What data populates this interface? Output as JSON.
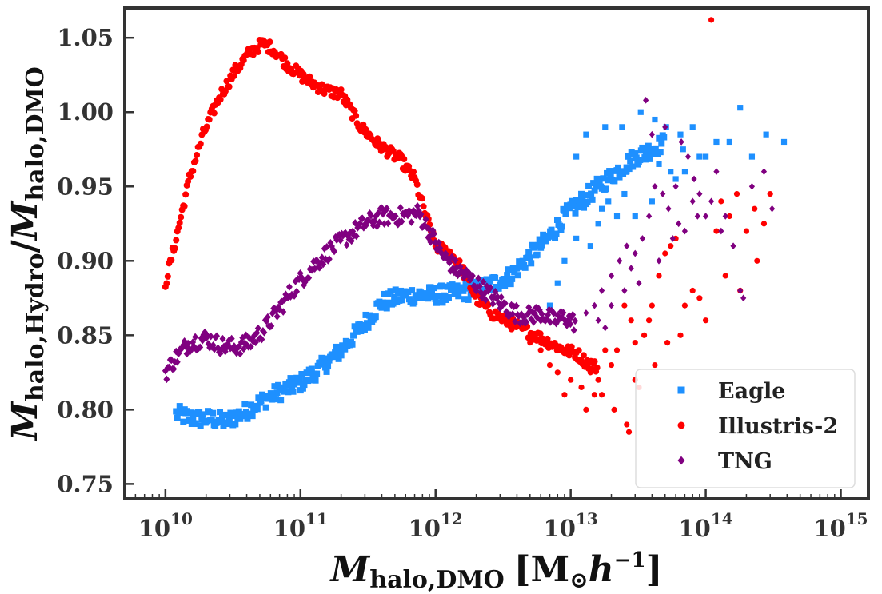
{
  "chart_data": {
    "type": "scatter",
    "title": "",
    "xlabel": {
      "main": "M",
      "sub": "halo,DMO",
      "unit": "[M",
      "unit_sub": "⊙",
      "unit_rest": "h",
      "unit_sup": "−1",
      "close": "]"
    },
    "ylabel": {
      "main": "M",
      "sub1": "halo,Hydro",
      "slash": "/",
      "main2": "M",
      "sub2": "halo,DMO"
    },
    "x_scale": "log",
    "xlim": [
      5000000000.0,
      1600000000000000.0
    ],
    "ylim": [
      0.74,
      1.07
    ],
    "x_ticks": [
      {
        "value": 10000000000.0,
        "base": "10",
        "exp": "10"
      },
      {
        "value": 100000000000.0,
        "base": "10",
        "exp": "11"
      },
      {
        "value": 1000000000000.0,
        "base": "10",
        "exp": "12"
      },
      {
        "value": 10000000000000.0,
        "base": "10",
        "exp": "13"
      },
      {
        "value": 100000000000000.0,
        "base": "10",
        "exp": "14"
      },
      {
        "value": 1000000000000000.0,
        "base": "10",
        "exp": "15"
      }
    ],
    "y_ticks": [
      "0.75",
      "0.80",
      "0.85",
      "0.90",
      "0.95",
      "1.00",
      "1.05"
    ],
    "grid": false,
    "legend_position": "bottom-right",
    "series": [
      {
        "name": "Eagle",
        "color": "#1e90ff",
        "marker": "square",
        "curve": [
          [
            12000000000.0,
            0.797
          ],
          [
            16000000000.0,
            0.794
          ],
          [
            22000000000.0,
            0.794
          ],
          [
            28000000000.0,
            0.792
          ],
          [
            38000000000.0,
            0.798
          ],
          [
            50000000000.0,
            0.805
          ],
          [
            70000000000.0,
            0.812
          ],
          [
            100000000000.0,
            0.818
          ],
          [
            150000000000.0,
            0.83
          ],
          [
            200000000000.0,
            0.84
          ],
          [
            280000000000.0,
            0.855
          ],
          [
            400000000000.0,
            0.872
          ],
          [
            600000000000.0,
            0.877
          ],
          [
            900000000000.0,
            0.877
          ],
          [
            1300000000000.0,
            0.878
          ],
          [
            1900000000000.0,
            0.88
          ],
          [
            2700000000000.0,
            0.885
          ],
          [
            3600000000000.0,
            0.89
          ],
          [
            4600000000000.0,
            0.9
          ],
          [
            6000000000000.0,
            0.91
          ],
          [
            7500000000000.0,
            0.92
          ],
          [
            9000000000000.0,
            0.93
          ],
          [
            12000000000000.0,
            0.94
          ],
          [
            16000000000000.0,
            0.95
          ],
          [
            22000000000000.0,
            0.96
          ],
          [
            30000000000000.0,
            0.97
          ],
          [
            40000000000000.0,
            0.975
          ],
          [
            50000000000000.0,
            0.98
          ]
        ],
        "curve_spread": 0.006,
        "points": [
          [
            11000000000000.0,
            0.97
          ],
          [
            13000000000000.0,
            0.985
          ],
          [
            18000000000000.0,
            0.99
          ],
          [
            24000000000000.0,
            0.99
          ],
          [
            33000000000000.0,
            1.0
          ],
          [
            42000000000000.0,
            0.995
          ],
          [
            51000000000000.0,
            0.99
          ],
          [
            65000000000000.0,
            0.985
          ],
          [
            80000000000000.0,
            0.99
          ],
          [
            100000000000000.0,
            0.97
          ],
          [
            120000000000000.0,
            0.98
          ],
          [
            150000000000000.0,
            0.98
          ],
          [
            180000000000000.0,
            1.003
          ],
          [
            220000000000000.0,
            0.97
          ],
          [
            280000000000000.0,
            0.985
          ],
          [
            380000000000000.0,
            0.98
          ],
          [
            55000000000000.0,
            0.96
          ],
          [
            60000000000000.0,
            0.955
          ],
          [
            70000000000000.0,
            0.96
          ],
          [
            90000000000000.0,
            0.97
          ],
          [
            16000000000000.0,
            0.925
          ],
          [
            14000000000000.0,
            0.91
          ],
          [
            19000000000000.0,
            0.94
          ],
          [
            25000000000000.0,
            0.945
          ],
          [
            30000000000000.0,
            0.93
          ],
          [
            40000000000000.0,
            0.94
          ],
          [
            22000000000000.0,
            0.93
          ],
          [
            8000000000000.0,
            0.885
          ],
          [
            7000000000000.0,
            0.87
          ],
          [
            9000000000000.0,
            0.9
          ],
          [
            11000000000000.0,
            0.915
          ],
          [
            17000000000000.0,
            0.935
          ],
          [
            26000000000000.0,
            0.96
          ],
          [
            36000000000000.0,
            0.968
          ],
          [
            45000000000000.0,
            0.965
          ],
          [
            68000000000000.0,
            0.975
          ]
        ]
      },
      {
        "name": "Illustris-2",
        "color": "#ff0000",
        "marker": "circle",
        "curve": [
          [
            10000000000.0,
            0.885
          ],
          [
            12000000000.0,
            0.915
          ],
          [
            15000000000.0,
            0.955
          ],
          [
            19000000000.0,
            0.985
          ],
          [
            25000000000.0,
            1.01
          ],
          [
            33000000000.0,
            1.028
          ],
          [
            42000000000.0,
            1.04
          ],
          [
            52000000000.0,
            1.046
          ],
          [
            62000000000.0,
            1.043
          ],
          [
            80000000000.0,
            1.032
          ],
          [
            110000000000.0,
            1.022
          ],
          [
            150000000000.0,
            1.015
          ],
          [
            200000000000.0,
            1.012
          ],
          [
            280000000000.0,
            0.99
          ],
          [
            380000000000.0,
            0.978
          ],
          [
            550000000000.0,
            0.968
          ],
          [
            700000000000.0,
            0.955
          ],
          [
            850000000000.0,
            0.93
          ],
          [
            1000000000000.0,
            0.91
          ],
          [
            1300000000000.0,
            0.905
          ],
          [
            1600000000000.0,
            0.893
          ],
          [
            2000000000000.0,
            0.875
          ],
          [
            2600000000000.0,
            0.865
          ],
          [
            3300000000000.0,
            0.86
          ],
          [
            4200000000000.0,
            0.855
          ],
          [
            5500000000000.0,
            0.85
          ],
          [
            7000000000000.0,
            0.845
          ],
          [
            9000000000000.0,
            0.84
          ],
          [
            11000000000000.0,
            0.838
          ],
          [
            13000000000000.0,
            0.832
          ],
          [
            16000000000000.0,
            0.828
          ]
        ],
        "curve_spread": 0.004,
        "points": [
          [
            110000000000000.0,
            1.062
          ],
          [
            130000000000000.0,
            0.94
          ],
          [
            150000000000000.0,
            0.93
          ],
          [
            170000000000000.0,
            0.945
          ],
          [
            200000000000000.0,
            0.92
          ],
          [
            230000000000000.0,
            0.935
          ],
          [
            270000000000000.0,
            0.925
          ],
          [
            300000000000000.0,
            0.945
          ],
          [
            120000000000000.0,
            0.92
          ],
          [
            90000000000000.0,
            0.875
          ],
          [
            80000000000000.0,
            0.88
          ],
          [
            70000000000000.0,
            0.87
          ],
          [
            60000000000000.0,
            0.915
          ],
          [
            55000000000000.0,
            0.91
          ],
          [
            50000000000000.0,
            0.905
          ],
          [
            45000000000000.0,
            0.89
          ],
          [
            40000000000000.0,
            0.87
          ],
          [
            38000000000000.0,
            0.86
          ],
          [
            35000000000000.0,
            0.85
          ],
          [
            30000000000000.0,
            0.845
          ],
          [
            28000000000000.0,
            0.86
          ],
          [
            25000000000000.0,
            0.87
          ],
          [
            22000000000000.0,
            0.84
          ],
          [
            20000000000000.0,
            0.83
          ],
          [
            18000000000000.0,
            0.84
          ],
          [
            16000000000000.0,
            0.82
          ],
          [
            15000000000000.0,
            0.81
          ],
          [
            14000000000000.0,
            0.825
          ],
          [
            12000000000000.0,
            0.815
          ],
          [
            10000000000000.0,
            0.82
          ],
          [
            8000000000000.0,
            0.825
          ],
          [
            7000000000000.0,
            0.83
          ],
          [
            6000000000000.0,
            0.84
          ],
          [
            5000000000000.0,
            0.845
          ],
          [
            30000000000000.0,
            0.82
          ],
          [
            26000000000000.0,
            0.79
          ],
          [
            27000000000000.0,
            0.785
          ],
          [
            32000000000000.0,
            0.815
          ],
          [
            42000000000000.0,
            0.83
          ],
          [
            52000000000000.0,
            0.845
          ],
          [
            65000000000000.0,
            0.85
          ],
          [
            240000000000000.0,
            0.9
          ],
          [
            180000000000000.0,
            0.88
          ],
          [
            140000000000000.0,
            0.89
          ],
          [
            100000000000000.0,
            0.86
          ],
          [
            17000000000000.0,
            0.81
          ],
          [
            21000000000000.0,
            0.8
          ],
          [
            13000000000000.0,
            0.8
          ],
          [
            9000000000000.0,
            0.81
          ]
        ]
      },
      {
        "name": "TNG",
        "color": "#800080",
        "marker": "diamond",
        "curve": [
          [
            10000000000.0,
            0.825
          ],
          [
            12000000000.0,
            0.835
          ],
          [
            15000000000.0,
            0.845
          ],
          [
            20000000000.0,
            0.848
          ],
          [
            26000000000.0,
            0.843
          ],
          [
            33000000000.0,
            0.842
          ],
          [
            42000000000.0,
            0.845
          ],
          [
            55000000000.0,
            0.855
          ],
          [
            70000000000.0,
            0.868
          ],
          [
            90000000000.0,
            0.882
          ],
          [
            120000000000.0,
            0.895
          ],
          [
            160000000000.0,
            0.906
          ],
          [
            220000000000.0,
            0.916
          ],
          [
            300000000000.0,
            0.925
          ],
          [
            400000000000.0,
            0.93
          ],
          [
            550000000000.0,
            0.93
          ],
          [
            750000000000.0,
            0.932
          ],
          [
            900000000000.0,
            0.92
          ],
          [
            1100000000000.0,
            0.905
          ],
          [
            1400000000000.0,
            0.895
          ],
          [
            1800000000000.0,
            0.888
          ],
          [
            2300000000000.0,
            0.88
          ],
          [
            3000000000000.0,
            0.872
          ],
          [
            3800000000000.0,
            0.865
          ],
          [
            4800000000000.0,
            0.863
          ],
          [
            6000000000000.0,
            0.865
          ],
          [
            7500000000000.0,
            0.86
          ],
          [
            9000000000000.0,
            0.862
          ],
          [
            11000000000000.0,
            0.858
          ]
        ],
        "curve_spread": 0.006,
        "points": [
          [
            13000000000000.0,
            0.865
          ],
          [
            15000000000000.0,
            0.87
          ],
          [
            17000000000000.0,
            0.88
          ],
          [
            20000000000000.0,
            0.89
          ],
          [
            23000000000000.0,
            0.9
          ],
          [
            26000000000000.0,
            0.91
          ],
          [
            30000000000000.0,
            0.905
          ],
          [
            34000000000000.0,
            0.915
          ],
          [
            38000000000000.0,
            0.93
          ],
          [
            42000000000000.0,
            0.95
          ],
          [
            48000000000000.0,
            0.945
          ],
          [
            53000000000000.0,
            0.935
          ],
          [
            60000000000000.0,
            0.95
          ],
          [
            66000000000000.0,
            0.98
          ],
          [
            74000000000000.0,
            0.97
          ],
          [
            82000000000000.0,
            0.955
          ],
          [
            90000000000000.0,
            0.945
          ],
          [
            100000000000000.0,
            0.93
          ],
          [
            110000000000000.0,
            0.94
          ],
          [
            120000000000000.0,
            0.96
          ],
          [
            140000000000000.0,
            0.93
          ],
          [
            160000000000000.0,
            0.91
          ],
          [
            180000000000000.0,
            0.88
          ],
          [
            220000000000000.0,
            0.95
          ],
          [
            270000000000000.0,
            0.96
          ],
          [
            310000000000000.0,
            0.935
          ],
          [
            36000000000000.0,
            1.008
          ],
          [
            40000000000000.0,
            0.985
          ],
          [
            50000000000000.0,
            0.99
          ],
          [
            70000000000000.0,
            0.92
          ],
          [
            25000000000000.0,
            0.88
          ],
          [
            28000000000000.0,
            0.895
          ],
          [
            32000000000000.0,
            0.885
          ],
          [
            45000000000000.0,
            0.9
          ],
          [
            57000000000000.0,
            0.915
          ],
          [
            63000000000000.0,
            0.925
          ],
          [
            20000000000000.0,
            0.87
          ],
          [
            18000000000000.0,
            0.855
          ],
          [
            16000000000000.0,
            0.86
          ],
          [
            80000000000000.0,
            0.94
          ],
          [
            87000000000000.0,
            0.93
          ],
          [
            130000000000000.0,
            0.92
          ],
          [
            190000000000000.0,
            0.875
          ]
        ]
      }
    ]
  }
}
